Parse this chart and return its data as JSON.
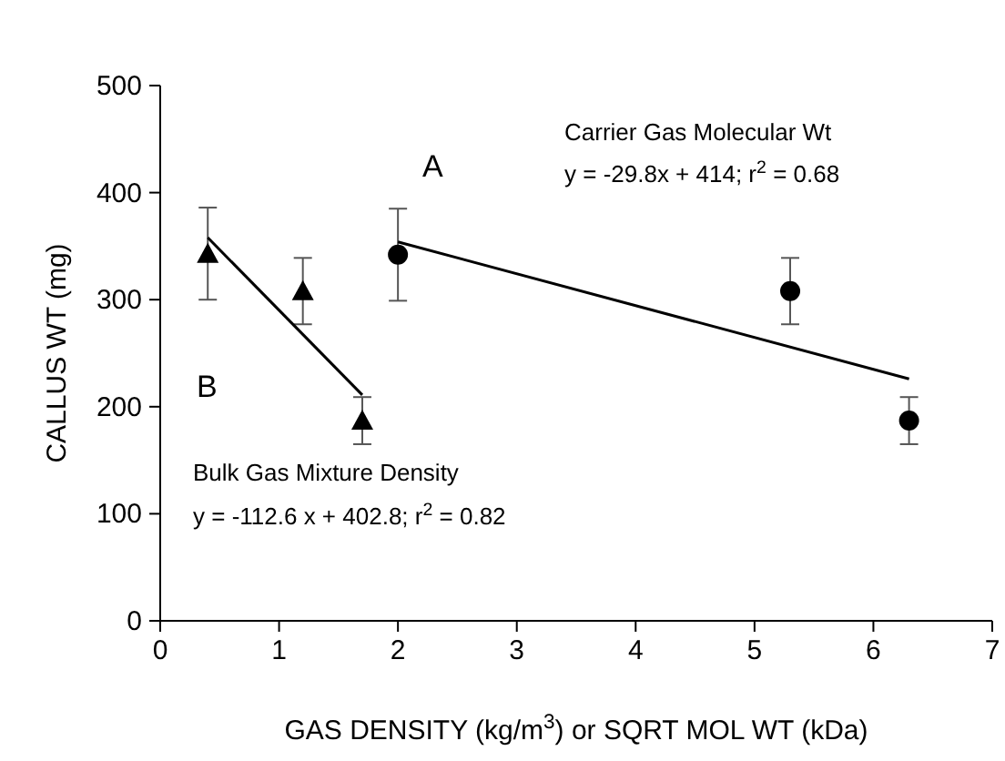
{
  "chart_data": {
    "type": "scatter",
    "xlabel": "GAS DENSITY (kg/m$^{3}$) or SQRT MOL WT (kDa)",
    "ylabel": "CALLUS WT (mg)",
    "xlim": [
      0,
      7
    ],
    "ylim": [
      0,
      500
    ],
    "xticks": [
      0,
      1,
      2,
      3,
      4,
      5,
      6,
      7
    ],
    "yticks": [
      0,
      100,
      200,
      300,
      400,
      500
    ],
    "grid": false,
    "series": [
      {
        "marker": "triangle",
        "color": "#000000",
        "x": [
          0.4,
          1.2,
          1.7
        ],
        "values": [
          343,
          308,
          187
        ],
        "errors": [
          43,
          31,
          22
        ]
      },
      {
        "marker": "circle",
        "color": "#000000",
        "x": [
          2.0,
          5.3,
          6.3
        ],
        "values": [
          342,
          308,
          187
        ],
        "errors": [
          43,
          31,
          22
        ]
      },
      {
        "type": "line",
        "marker": "none",
        "color": "#000000",
        "x": [
          0.4,
          1.7
        ],
        "values": [
          358,
          211
        ]
      },
      {
        "type": "line",
        "marker": "none",
        "color": "#000000",
        "x": [
          2.0,
          6.3
        ],
        "values": [
          354,
          226
        ]
      }
    ],
    "annotations": [
      "A",
      "Carrier Gas Molecular Wt",
      "y = -29.8x + 414; r$^{2}$ = 0.68",
      "B",
      "Bulk Gas Mixture Density",
      "y = -112.6 x + 402.8; r$^{2}$ = 0.82"
    ]
  }
}
